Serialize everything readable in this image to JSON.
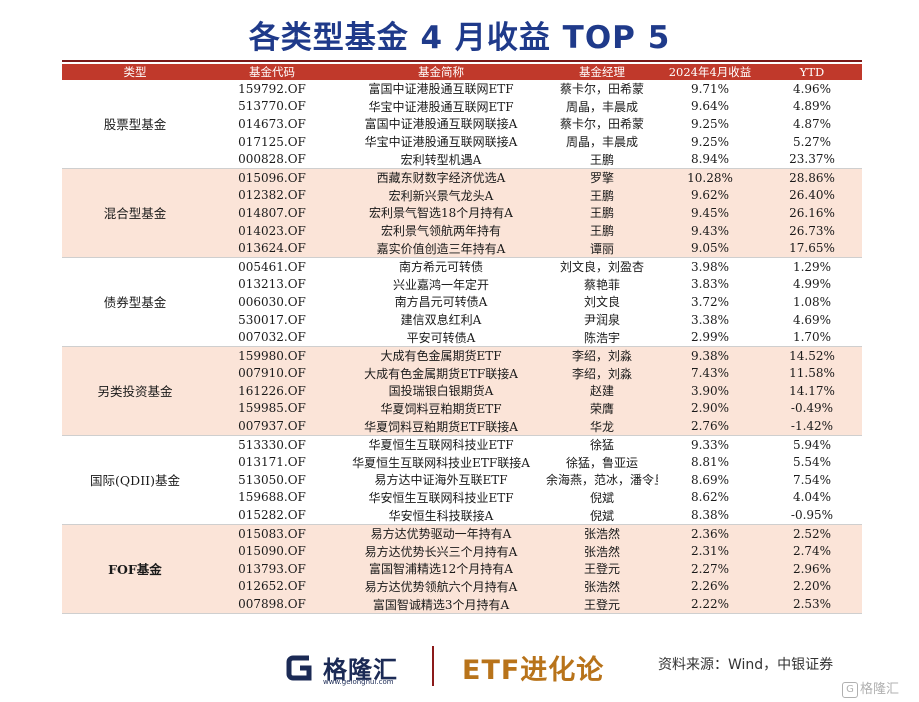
{
  "title": "各类型基金 4 月收益 TOP 5",
  "headers": [
    "类型",
    "基金代码",
    "基金简称",
    "基金经理",
    "2024年4月收益",
    "YTD"
  ],
  "groups": [
    {
      "category": "股票型基金",
      "bold": false,
      "rows": [
        [
          "159792.OF",
          "富国中证港股通互联网ETF",
          "蔡卡尔，田希蒙",
          "9.71%",
          "4.96%"
        ],
        [
          "513770.OF",
          "华宝中证港股通互联网ETF",
          "周晶，丰晨成",
          "9.64%",
          "4.89%"
        ],
        [
          "014673.OF",
          "富国中证港股通互联网联接A",
          "蔡卡尔，田希蒙",
          "9.25%",
          "4.87%"
        ],
        [
          "017125.OF",
          "华宝中证港股通互联网联接A",
          "周晶，丰晨成",
          "9.25%",
          "5.27%"
        ],
        [
          "000828.OF",
          "宏利转型机遇A",
          "王鹏",
          "8.94%",
          "23.37%"
        ]
      ]
    },
    {
      "category": "混合型基金",
      "bold": false,
      "rows": [
        [
          "015096.OF",
          "西藏东财数字经济优选A",
          "罗擎",
          "10.28%",
          "28.86%"
        ],
        [
          "012382.OF",
          "宏利新兴景气龙头A",
          "王鹏",
          "9.62%",
          "26.40%"
        ],
        [
          "014807.OF",
          "宏利景气智选18个月持有A",
          "王鹏",
          "9.45%",
          "26.16%"
        ],
        [
          "014023.OF",
          "宏利景气领航两年持有",
          "王鹏",
          "9.43%",
          "26.73%"
        ],
        [
          "013624.OF",
          "嘉实价值创造三年持有A",
          "谭丽",
          "9.05%",
          "17.65%"
        ]
      ]
    },
    {
      "category": "债券型基金",
      "bold": false,
      "rows": [
        [
          "005461.OF",
          "南方希元可转债",
          "刘文良，刘盈杏",
          "3.98%",
          "1.29%"
        ],
        [
          "013213.OF",
          "兴业嘉鸿一年定开",
          "蔡艳菲",
          "3.83%",
          "4.99%"
        ],
        [
          "006030.OF",
          "南方昌元可转债A",
          "刘文良",
          "3.72%",
          "1.08%"
        ],
        [
          "530017.OF",
          "建信双息红利A",
          "尹润泉",
          "3.38%",
          "4.69%"
        ],
        [
          "007032.OF",
          "平安可转债A",
          "陈浩宇",
          "2.99%",
          "1.70%"
        ]
      ]
    },
    {
      "category": "另类投资基金",
      "bold": false,
      "rows": [
        [
          "159980.OF",
          "大成有色金属期货ETF",
          "李绍，刘淼",
          "9.38%",
          "14.52%"
        ],
        [
          "007910.OF",
          "大成有色金属期货ETF联接A",
          "李绍，刘淼",
          "7.43%",
          "11.58%"
        ],
        [
          "161226.OF",
          "国投瑞银白银期货A",
          "赵建",
          "3.90%",
          "14.17%"
        ],
        [
          "159985.OF",
          "华夏饲料豆粕期货ETF",
          "荣膺",
          "2.90%",
          "-0.49%"
        ],
        [
          "007937.OF",
          "华夏饲料豆粕期货ETF联接A",
          "华龙",
          "2.76%",
          "-1.42%"
        ]
      ]
    },
    {
      "category": "国际(QDII)基金",
      "bold": false,
      "rows": [
        [
          "513330.OF",
          "华夏恒生互联网科技业ETF",
          "徐猛",
          "9.33%",
          "5.94%"
        ],
        [
          "013171.OF",
          "华夏恒生互联网科技业ETF联接A",
          "徐猛，鲁亚运",
          "8.81%",
          "5.54%"
        ],
        [
          "513050.OF",
          "易方达中证海外互联ETF",
          "余海燕，范冰，潘令旦",
          "8.69%",
          "7.54%"
        ],
        [
          "159688.OF",
          "华安恒生互联网科技业ETF",
          "倪斌",
          "8.62%",
          "4.04%"
        ],
        [
          "015282.OF",
          "华安恒生科技联接A",
          "倪斌",
          "8.38%",
          "-0.95%"
        ]
      ]
    },
    {
      "category": "FOF基金",
      "bold": true,
      "rows": [
        [
          "015083.OF",
          "易方达优势驱动一年持有A",
          "张浩然",
          "2.36%",
          "2.52%"
        ],
        [
          "015090.OF",
          "易方达优势长兴三个月持有A",
          "张浩然",
          "2.31%",
          "2.74%"
        ],
        [
          "013793.OF",
          "富国智浦精选12个月持有A",
          "王登元",
          "2.27%",
          "2.96%"
        ],
        [
          "012652.OF",
          "易方达优势领航六个月持有A",
          "张浩然",
          "2.26%",
          "2.20%"
        ],
        [
          "007898.OF",
          "富国智诚精选3个月持有A",
          "王登元",
          "2.22%",
          "2.53%"
        ]
      ]
    }
  ],
  "footer": {
    "logo_text": "格隆汇",
    "logo_url": "www.gelonghui.com",
    "brand": "ETF进化论",
    "source": "资料来源：Wind，中银证券",
    "watermark": "格隆汇"
  }
}
